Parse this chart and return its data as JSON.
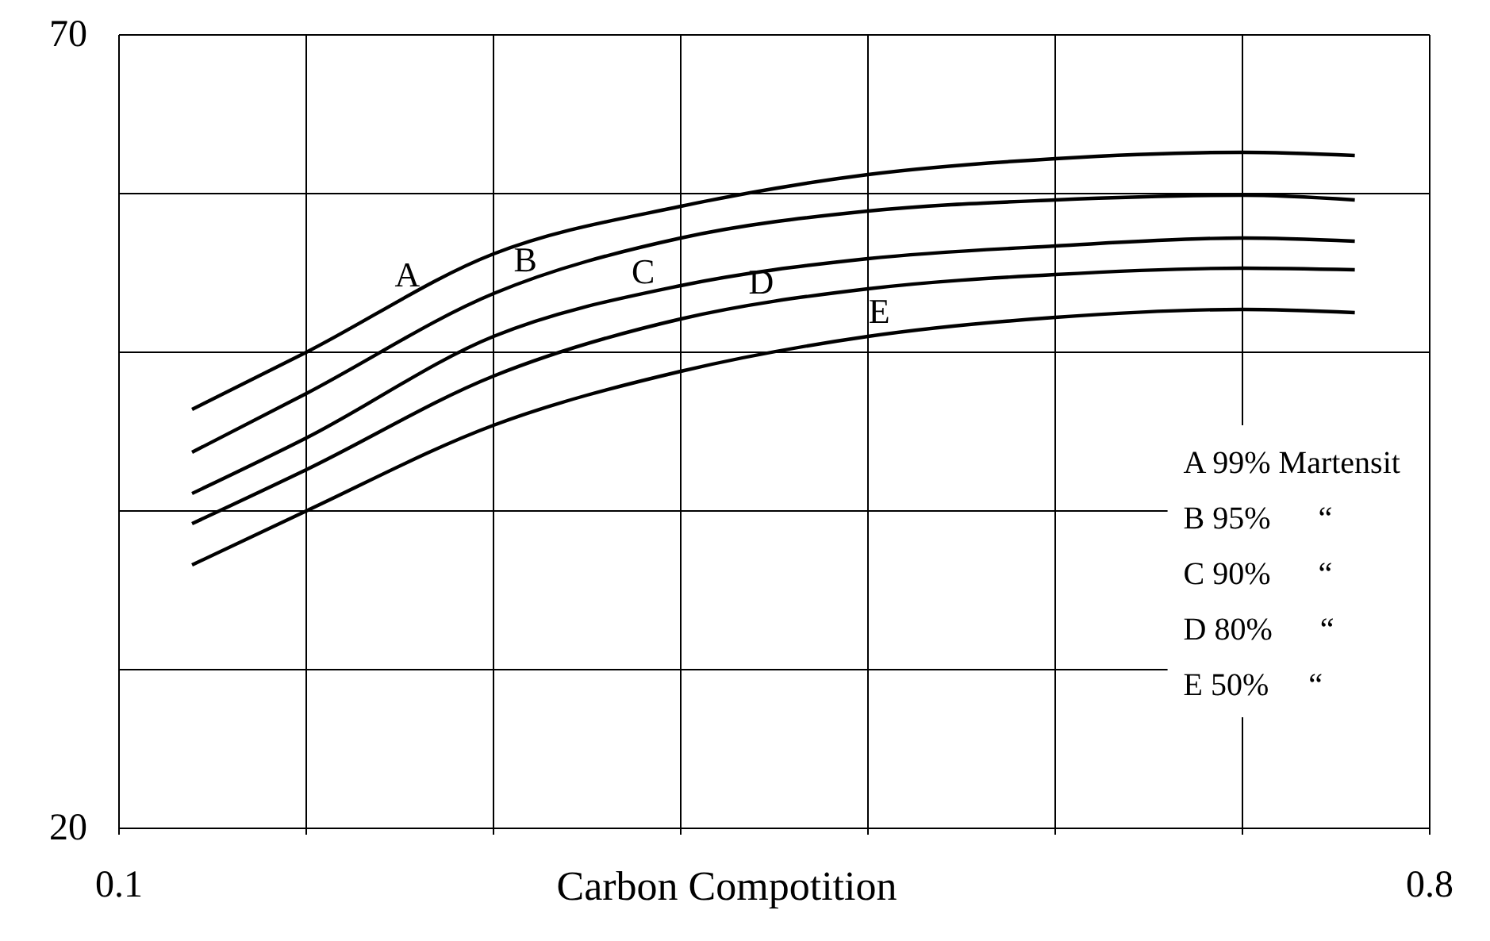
{
  "chart_data": {
    "type": "line",
    "xlabel": "Carbon Compotition",
    "x": [
      0.139,
      0.2,
      0.3,
      0.4,
      0.5,
      0.6,
      0.7,
      0.76
    ],
    "series": [
      {
        "name": "A",
        "color": "#000000",
        "values": [
          46.4,
          50,
          56.2,
          59.2,
          61.2,
          62.2,
          62.6,
          62.4
        ]
      },
      {
        "name": "B",
        "color": "#000000",
        "values": [
          43.7,
          47.4,
          53.7,
          57.2,
          58.9,
          59.6,
          59.9,
          59.6
        ]
      },
      {
        "name": "C",
        "color": "#000000",
        "values": [
          41.1,
          44.6,
          51,
          54.2,
          55.9,
          56.7,
          57.2,
          57
        ]
      },
      {
        "name": "D",
        "color": "#000000",
        "values": [
          39.2,
          42.6,
          48.5,
          52.1,
          54,
          54.9,
          55.3,
          55.2
        ]
      },
      {
        "name": "E",
        "color": "#000000",
        "values": [
          36.6,
          40,
          45.4,
          48.8,
          51,
          52.2,
          52.7,
          52.5
        ]
      }
    ],
    "xlim": [
      0.1,
      0.8
    ],
    "ylim": [
      20,
      70
    ],
    "xticks": [
      0.1,
      {
        "value": 0.2,
        "label": null
      },
      {
        "value": 0.3,
        "label": null
      },
      {
        "value": 0.4,
        "label": null
      },
      {
        "value": 0.5,
        "label": null
      },
      {
        "value": 0.6,
        "label": null
      },
      {
        "value": 0.7,
        "label": null
      },
      0.8
    ],
    "yticks": [
      20,
      {
        "value": 30,
        "label": null
      },
      {
        "value": 40,
        "label": null
      },
      {
        "value": 50,
        "label": null
      },
      {
        "value": 60,
        "label": null
      },
      70
    ],
    "grid": true,
    "marker": "none",
    "line_style": "solid",
    "annotations": [
      "A 99% Martensit",
      "B 95%      “",
      "C 90%      “",
      "D 80%      “",
      "E 50%     “"
    ]
  }
}
